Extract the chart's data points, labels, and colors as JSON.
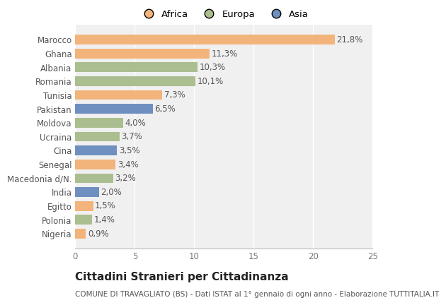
{
  "categories": [
    "Marocco",
    "Ghana",
    "Albania",
    "Romania",
    "Tunisia",
    "Pakistan",
    "Moldova",
    "Ucraina",
    "Cina",
    "Senegal",
    "Macedonia d/N.",
    "India",
    "Egitto",
    "Polonia",
    "Nigeria"
  ],
  "values": [
    21.8,
    11.3,
    10.3,
    10.1,
    7.3,
    6.5,
    4.0,
    3.7,
    3.5,
    3.4,
    3.2,
    2.0,
    1.5,
    1.4,
    0.9
  ],
  "labels": [
    "21,8%",
    "11,3%",
    "10,3%",
    "10,1%",
    "7,3%",
    "6,5%",
    "4,0%",
    "3,7%",
    "3,5%",
    "3,4%",
    "3,2%",
    "2,0%",
    "1,5%",
    "1,4%",
    "0,9%"
  ],
  "colors": [
    "#F2B47A",
    "#F2B47A",
    "#ABBE8F",
    "#ABBE8F",
    "#F2B47A",
    "#6F8FC0",
    "#ABBE8F",
    "#ABBE8F",
    "#6F8FC0",
    "#F2B47A",
    "#ABBE8F",
    "#6F8FC0",
    "#F2B47A",
    "#ABBE8F",
    "#F2B47A"
  ],
  "legend": [
    {
      "label": "Africa",
      "color": "#F2B47A"
    },
    {
      "label": "Europa",
      "color": "#ABBE8F"
    },
    {
      "label": "Asia",
      "color": "#6F8FC0"
    }
  ],
  "xlim": [
    0,
    25
  ],
  "xticks": [
    0,
    5,
    10,
    15,
    20,
    25
  ],
  "title": "Cittadini Stranieri per Cittadinanza",
  "subtitle": "COMUNE DI TRAVAGLIATO (BS) - Dati ISTAT al 1° gennaio di ogni anno - Elaborazione TUTTITALIA.IT",
  "bg_color": "#ffffff",
  "plot_bg_color": "#f0f0f0",
  "grid_color": "#ffffff",
  "bar_height": 0.7,
  "label_fontsize": 8.5,
  "tick_fontsize": 8.5,
  "title_fontsize": 11,
  "subtitle_fontsize": 7.5
}
